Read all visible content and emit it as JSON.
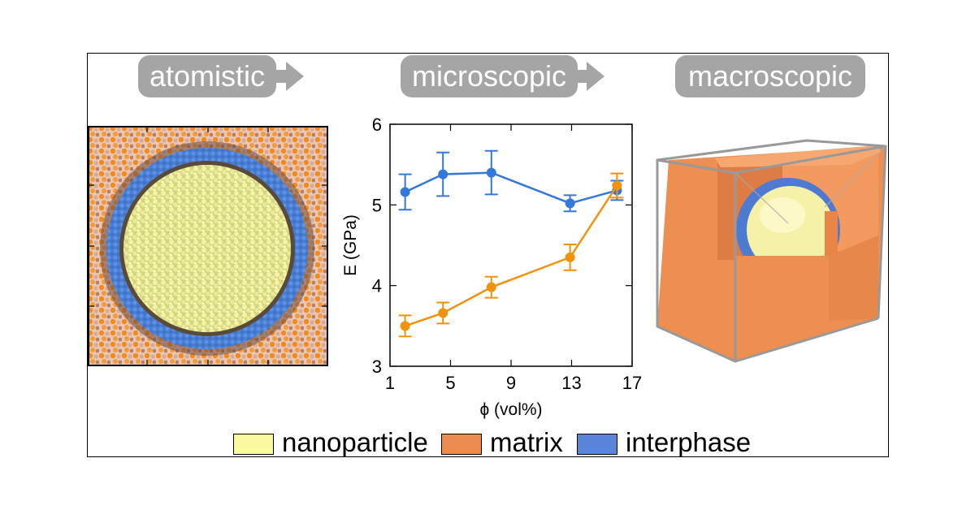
{
  "stages": [
    {
      "label": "atomistic"
    },
    {
      "label": "microscopic"
    },
    {
      "label": "macroscopic"
    }
  ],
  "colors": {
    "nanoparticle": "#fafaa0",
    "matrix": "#ec8c4e",
    "interphase": "#5a86da",
    "series_blue": "#3478dd",
    "series_orange": "#f0920e",
    "pill": "#a5a5a5"
  },
  "legend": [
    {
      "label": "nanoparticle",
      "color": "#fafaa0"
    },
    {
      "label": "matrix",
      "color": "#ec8c4e"
    },
    {
      "label": "interphase",
      "color": "#5a86da"
    }
  ],
  "chart_data": {
    "type": "line",
    "xlabel": "ϕ (vol%)",
    "ylabel": "E (GPa)",
    "xlim": [
      1,
      17
    ],
    "ylim": [
      3,
      6
    ],
    "xticks": [
      1,
      5,
      9,
      13,
      17
    ],
    "yticks": [
      3,
      4,
      5,
      6
    ],
    "grid": false,
    "series": [
      {
        "color": "#3478dd",
        "x": [
          2.0,
          4.5,
          7.7,
          12.9,
          16.0
        ],
        "y": [
          5.16,
          5.38,
          5.4,
          5.02,
          5.18
        ],
        "err": [
          0.22,
          0.27,
          0.27,
          0.1,
          0.12
        ]
      },
      {
        "color": "#f0920e",
        "x": [
          2.0,
          4.5,
          7.7,
          12.9,
          16.0
        ],
        "y": [
          3.5,
          3.66,
          3.98,
          4.35,
          5.24
        ],
        "err": [
          0.13,
          0.13,
          0.13,
          0.16,
          0.15
        ]
      }
    ]
  }
}
